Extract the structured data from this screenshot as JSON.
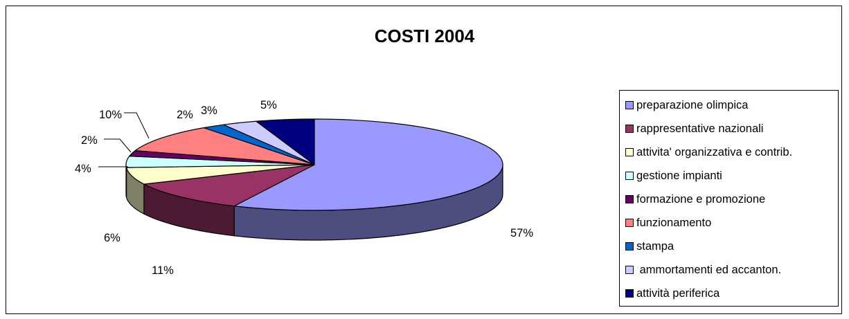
{
  "chart_data": {
    "type": "pie",
    "title": "COSTI 2004",
    "legend_position": "right",
    "slices": [
      {
        "label": "preparazione olimpica",
        "value": 57,
        "value_label": "57%",
        "color": "#9999ff",
        "side_color": "#4d4d80"
      },
      {
        "label": "rappresentative nazionali",
        "value": 11,
        "value_label": "11%",
        "color": "#993366",
        "side_color": "#4d1a33"
      },
      {
        "label": "attivita' organizzativa e contrib.",
        "value": 6,
        "value_label": "6%",
        "color": "#ffffcc",
        "side_color": "#808066"
      },
      {
        "label": "gestione impianti",
        "value": 4,
        "value_label": "4%",
        "color": "#ccffff",
        "side_color": "#668080"
      },
      {
        "label": "formazione e promozione",
        "value": 2,
        "value_label": "2%",
        "color": "#660066",
        "side_color": "#330033"
      },
      {
        "label": "funzionamento",
        "value": 10,
        "value_label": "10%",
        "color": "#ff8080",
        "side_color": "#804040"
      },
      {
        "label": "stampa",
        "value": 2,
        "value_label": "2%",
        "color": "#0066cc",
        "side_color": "#003366"
      },
      {
        "label": " ammortamenti ed accanton.",
        "value": 3,
        "value_label": "3%",
        "color": "#ccccff",
        "side_color": "#666680"
      },
      {
        "label": "attività periferica",
        "value": 5,
        "value_label": "5%",
        "color": "#000080",
        "side_color": "#000040"
      }
    ]
  }
}
